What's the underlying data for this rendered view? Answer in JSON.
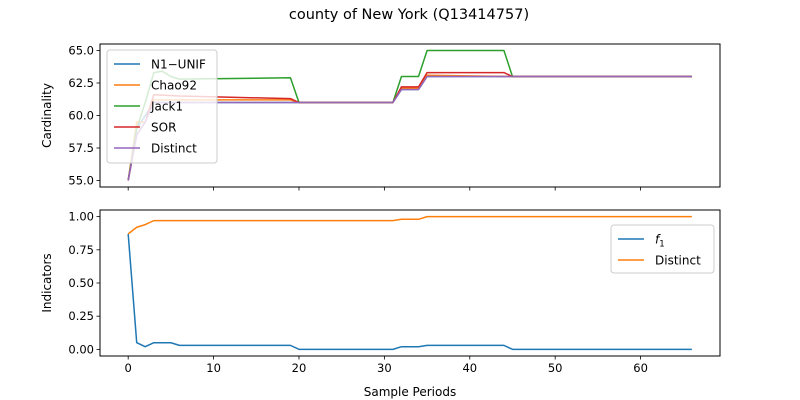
{
  "figure": {
    "title": "county of New York (Q13414757)"
  },
  "colors": {
    "N1-UNIF": "#1f77b4",
    "Chao92": "#ff7f0e",
    "Jack1": "#2ca02c",
    "SOR": "#d62728",
    "Distinct": "#9467bd",
    "f1": "#1f77b4",
    "Distinct2": "#ff7f0e"
  },
  "chart_data": [
    {
      "type": "line",
      "ylabel": "Cardinality",
      "xlabel": "",
      "xlim": [
        -3.3,
        69.3
      ],
      "ylim": [
        54.5,
        65.5
      ],
      "xticks": [
        0,
        10,
        20,
        30,
        40,
        50,
        60
      ],
      "xtick_labels_visible": false,
      "yticks": [
        55.0,
        57.5,
        60.0,
        62.5,
        65.0
      ],
      "ytick_labels": [
        "55.0",
        "57.5",
        "60.0",
        "62.5",
        "65.0"
      ],
      "legend": {
        "placement": "top-left"
      },
      "grid": false,
      "series": [
        {
          "name": "N1−UNIF",
          "color_key": "N1-UNIF",
          "values": [
            [
              0,
              55.0
            ],
            [
              1,
              59.0
            ],
            [
              2,
              60.0
            ],
            [
              3,
              61.0
            ],
            [
              19,
              61.0
            ],
            [
              20,
              61.0
            ],
            [
              31,
              61.0
            ],
            [
              32,
              62.0
            ],
            [
              34,
              62.0
            ],
            [
              35,
              63.0
            ],
            [
              45,
              63.0
            ],
            [
              66,
              63.0
            ]
          ]
        },
        {
          "name": "Chao92",
          "color_key": "Chao92",
          "values": [
            [
              0,
              55.0
            ],
            [
              1,
              59.5
            ],
            [
              2,
              59.5
            ],
            [
              3,
              61.2
            ],
            [
              19,
              61.2
            ],
            [
              20,
              61.0
            ],
            [
              31,
              61.0
            ],
            [
              32,
              62.1
            ],
            [
              34,
              62.1
            ],
            [
              35,
              63.1
            ],
            [
              45,
              63.0
            ],
            [
              66,
              63.0
            ]
          ]
        },
        {
          "name": "Jack1",
          "color_key": "Jack1",
          "values": [
            [
              0,
              55.0
            ],
            [
              1,
              59.0
            ],
            [
              2,
              61.0
            ],
            [
              3,
              63.3
            ],
            [
              4,
              63.4
            ],
            [
              5,
              63.0
            ],
            [
              6,
              62.8
            ],
            [
              19,
              62.9
            ],
            [
              20,
              61.0
            ],
            [
              31,
              61.0
            ],
            [
              32,
              63.0
            ],
            [
              34,
              63.0
            ],
            [
              35,
              65.0
            ],
            [
              44,
              65.0
            ],
            [
              45,
              63.0
            ],
            [
              66,
              63.0
            ]
          ]
        },
        {
          "name": "SOR",
          "color_key": "SOR",
          "values": [
            [
              0,
              55.0
            ],
            [
              1,
              58.5
            ],
            [
              2,
              59.5
            ],
            [
              3,
              61.6
            ],
            [
              6,
              61.5
            ],
            [
              12,
              61.4
            ],
            [
              19,
              61.3
            ],
            [
              20,
              61.0
            ],
            [
              31,
              61.0
            ],
            [
              32,
              62.2
            ],
            [
              34,
              62.2
            ],
            [
              35,
              63.3
            ],
            [
              44,
              63.3
            ],
            [
              45,
              63.0
            ],
            [
              66,
              63.0
            ]
          ]
        },
        {
          "name": "Distinct",
          "color_key": "Distinct",
          "values": [
            [
              0,
              55.0
            ],
            [
              1,
              58.5
            ],
            [
              2,
              59.5
            ],
            [
              3,
              61.0
            ],
            [
              19,
              61.0
            ],
            [
              20,
              61.0
            ],
            [
              31,
              61.0
            ],
            [
              32,
              62.0
            ],
            [
              34,
              62.0
            ],
            [
              35,
              63.0
            ],
            [
              45,
              63.0
            ],
            [
              66,
              63.0
            ]
          ]
        }
      ]
    },
    {
      "type": "line",
      "ylabel": "Indicators",
      "xlabel": "Sample Periods",
      "xlim": [
        -3.3,
        69.3
      ],
      "ylim": [
        -0.05,
        1.05
      ],
      "xticks": [
        0,
        10,
        20,
        30,
        40,
        50,
        60
      ],
      "xtick_labels": [
        "0",
        "10",
        "20",
        "30",
        "40",
        "50",
        "60"
      ],
      "yticks": [
        0.0,
        0.25,
        0.5,
        0.75,
        1.0
      ],
      "ytick_labels": [
        "0.00",
        "0.25",
        "0.50",
        "0.75",
        "1.00"
      ],
      "legend": {
        "placement": "top-right"
      },
      "grid": false,
      "series": [
        {
          "name": "f1",
          "label_main": "f",
          "label_sub": "1",
          "color_key": "f1",
          "values": [
            [
              0,
              0.87
            ],
            [
              1,
              0.05
            ],
            [
              2,
              0.02
            ],
            [
              3,
              0.05
            ],
            [
              5,
              0.05
            ],
            [
              6,
              0.03
            ],
            [
              19,
              0.03
            ],
            [
              20,
              0.0
            ],
            [
              31,
              0.0
            ],
            [
              32,
              0.02
            ],
            [
              34,
              0.02
            ],
            [
              35,
              0.03
            ],
            [
              44,
              0.03
            ],
            [
              45,
              0.0
            ],
            [
              66,
              0.0
            ]
          ]
        },
        {
          "name": "Distinct",
          "color_key": "Distinct2",
          "values": [
            [
              0,
              0.87
            ],
            [
              1,
              0.92
            ],
            [
              2,
              0.94
            ],
            [
              3,
              0.97
            ],
            [
              19,
              0.97
            ],
            [
              31,
              0.97
            ],
            [
              32,
              0.98
            ],
            [
              34,
              0.98
            ],
            [
              35,
              1.0
            ],
            [
              66,
              1.0
            ]
          ]
        }
      ]
    }
  ]
}
